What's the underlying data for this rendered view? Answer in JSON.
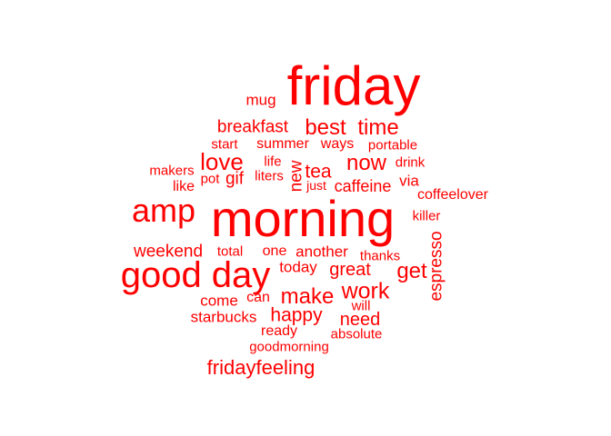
{
  "color": "#ff0000",
  "words": [
    {
      "id": "friday",
      "text": "friday"
    },
    {
      "id": "mug",
      "text": "mug"
    },
    {
      "id": "breakfast",
      "text": "breakfast"
    },
    {
      "id": "best",
      "text": "best"
    },
    {
      "id": "time",
      "text": "time"
    },
    {
      "id": "start",
      "text": "start"
    },
    {
      "id": "summer",
      "text": "summer"
    },
    {
      "id": "ways",
      "text": "ways"
    },
    {
      "id": "portable",
      "text": "portable"
    },
    {
      "id": "love",
      "text": "love"
    },
    {
      "id": "life",
      "text": "life"
    },
    {
      "id": "now",
      "text": "now"
    },
    {
      "id": "drink",
      "text": "drink"
    },
    {
      "id": "makers",
      "text": "makers"
    },
    {
      "id": "pot",
      "text": "pot"
    },
    {
      "id": "gif",
      "text": "gif"
    },
    {
      "id": "liters",
      "text": "liters"
    },
    {
      "id": "new",
      "text": "new"
    },
    {
      "id": "tea",
      "text": "tea"
    },
    {
      "id": "via",
      "text": "via"
    },
    {
      "id": "like",
      "text": "like"
    },
    {
      "id": "just",
      "text": "just"
    },
    {
      "id": "caffeine",
      "text": "caffeine"
    },
    {
      "id": "coffeelover",
      "text": "coffeelover"
    },
    {
      "id": "amp",
      "text": "amp"
    },
    {
      "id": "morning",
      "text": "morning"
    },
    {
      "id": "killer",
      "text": "killer"
    },
    {
      "id": "espresso",
      "text": "espresso"
    },
    {
      "id": "weekend",
      "text": "weekend"
    },
    {
      "id": "total",
      "text": "total"
    },
    {
      "id": "one",
      "text": "one"
    },
    {
      "id": "another",
      "text": "another"
    },
    {
      "id": "thanks",
      "text": "thanks"
    },
    {
      "id": "good-day",
      "text": "good day"
    },
    {
      "id": "today",
      "text": "today"
    },
    {
      "id": "great",
      "text": "great"
    },
    {
      "id": "get",
      "text": "get"
    },
    {
      "id": "come",
      "text": "come"
    },
    {
      "id": "can",
      "text": "can"
    },
    {
      "id": "make",
      "text": "make"
    },
    {
      "id": "work",
      "text": "work"
    },
    {
      "id": "will",
      "text": "will"
    },
    {
      "id": "starbucks",
      "text": "starbucks"
    },
    {
      "id": "happy",
      "text": "happy"
    },
    {
      "id": "need",
      "text": "need"
    },
    {
      "id": "ready",
      "text": "ready"
    },
    {
      "id": "absolute",
      "text": "absolute"
    },
    {
      "id": "goodmorning",
      "text": "goodmorning"
    },
    {
      "id": "fridayfeeling",
      "text": "fridayfeeling"
    }
  ]
}
